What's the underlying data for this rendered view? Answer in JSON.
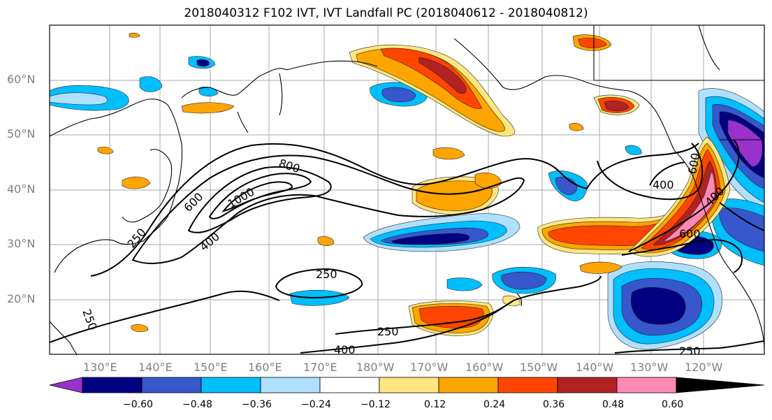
{
  "title": "2018040312 F102 IVT, IVT Landfall PC (2018040612 - 2018040812)",
  "lat_labels": [
    "60°N",
    "50°N",
    "40°N",
    "30°N",
    "20°N"
  ],
  "lon_labels": [
    "130°E",
    "140°E",
    "150°E",
    "160°E",
    "170°E",
    "180°W",
    "170°W",
    "160°W",
    "150°W",
    "140°W",
    "130°W",
    "120°W"
  ],
  "contour_labels": [
    "800",
    "600",
    "1000",
    "250",
    "400",
    "250",
    "250",
    "400",
    "250",
    "400",
    "600",
    "400",
    "600",
    "250"
  ],
  "colorbar": {
    "ticks": [
      "−0.60",
      "−0.48",
      "−0.36",
      "−0.24",
      "−0.12",
      "0.12",
      "0.24",
      "0.36",
      "0.48",
      "0.60"
    ],
    "colors": [
      "#9932cc",
      "#000080",
      "#3658cc",
      "#00bfff",
      "#b0e0ff",
      "#ffffff",
      "#ffe680",
      "#ffa500",
      "#ff4500",
      "#b22222",
      "#ff88b4"
    ]
  },
  "colors": {
    "neg_1": "#b0e0ff",
    "neg_2": "#00bfff",
    "neg_3": "#3658cc",
    "neg_4": "#000080",
    "neg_5": "#9932cc",
    "pos_1": "#ffe680",
    "pos_2": "#ffa500",
    "pos_3": "#ff4500",
    "pos_4": "#b22222",
    "pos_5": "#ff88b4"
  }
}
